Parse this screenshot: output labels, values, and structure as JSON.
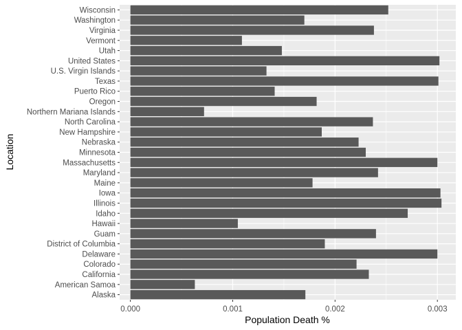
{
  "chart_data": {
    "type": "bar",
    "orientation": "horizontal",
    "xlabel": "Population Death %",
    "ylabel": "Location",
    "xlim": [
      -0.000105,
      0.00318
    ],
    "x_ticks": [
      0.0,
      0.001,
      0.002,
      0.003
    ],
    "x_tick_labels": [
      "0.000",
      "0.001",
      "0.002",
      "0.003"
    ],
    "grid": true,
    "legend": "none",
    "colors": {
      "panel": "#ebebeb",
      "bar": "#595959",
      "grid": "#ffffff"
    },
    "categories": [
      "Alaska",
      "American Samoa",
      "California",
      "Colorado",
      "Delaware",
      "District of Columbia",
      "Guam",
      "Hawaii",
      "Idaho",
      "Illinois",
      "Iowa",
      "Maine",
      "Maryland",
      "Massachusetts",
      "Minnesota",
      "Nebraska",
      "New Hampshire",
      "North Carolina",
      "Northern Mariana Islands",
      "Oregon",
      "Puerto Rico",
      "Texas",
      "U.S. Virgin Islands",
      "United States",
      "Utah",
      "Vermont",
      "Virginia",
      "Washington",
      "Wisconsin"
    ],
    "values": [
      0.00171,
      0.00063,
      0.00233,
      0.00221,
      0.003,
      0.0019,
      0.0024,
      0.00105,
      0.00271,
      0.00304,
      0.00303,
      0.00178,
      0.00242,
      0.003,
      0.0023,
      0.00223,
      0.00187,
      0.00237,
      0.00072,
      0.00182,
      0.00141,
      0.00301,
      0.00133,
      0.00302,
      0.00148,
      0.00109,
      0.00238,
      0.0017,
      0.00252
    ]
  }
}
